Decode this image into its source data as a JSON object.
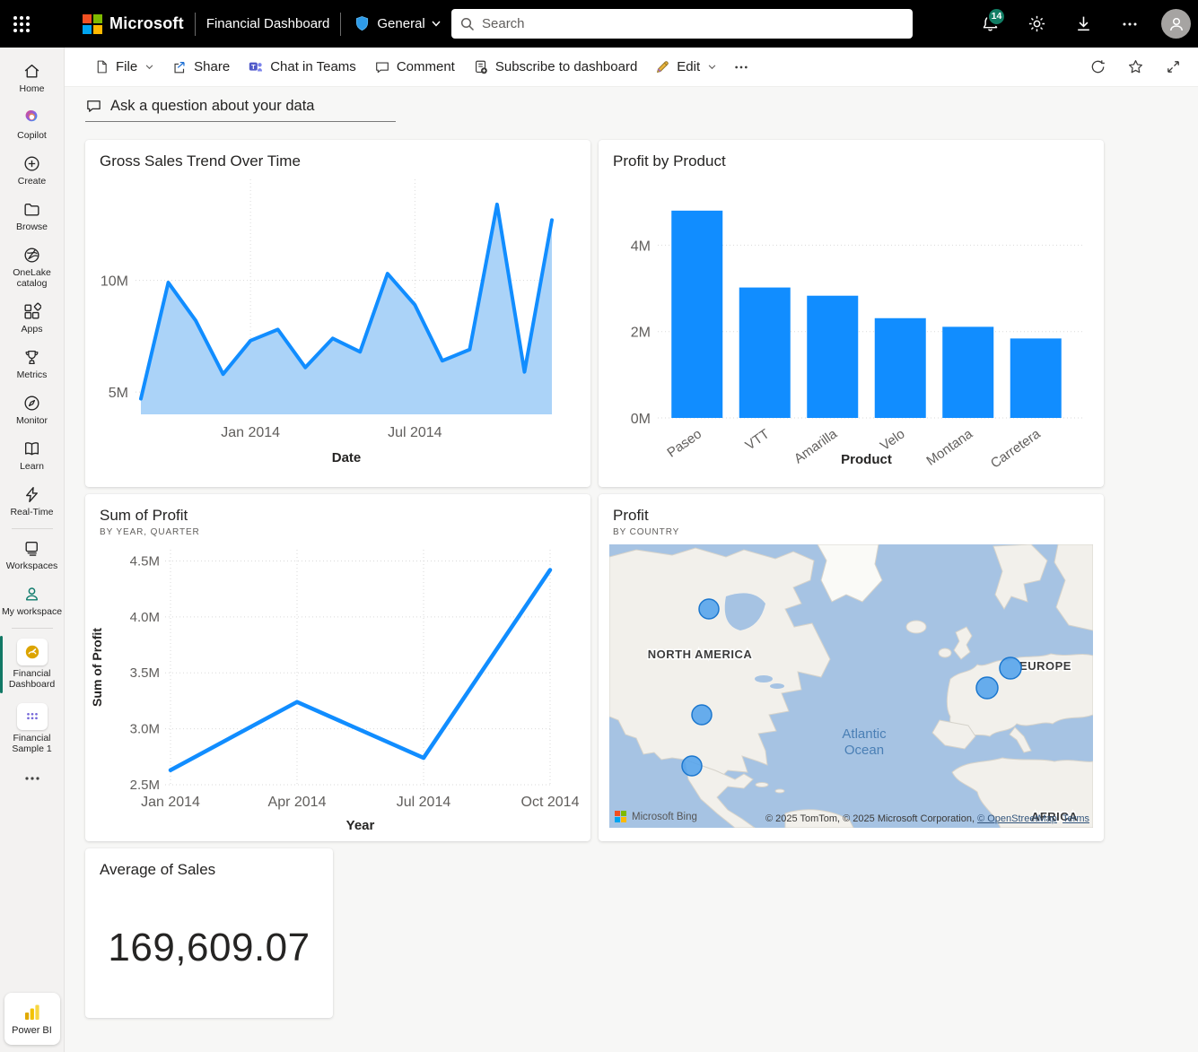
{
  "topbar": {
    "product": "Microsoft",
    "title": "Financial Dashboard",
    "workspace": "General",
    "search_placeholder": "Search",
    "notification_count": "14"
  },
  "toolbar": {
    "file": "File",
    "share": "Share",
    "chat_in_teams": "Chat in Teams",
    "comment": "Comment",
    "subscribe": "Subscribe to dashboard",
    "edit": "Edit"
  },
  "qna": {
    "prompt": "Ask a question about your data"
  },
  "sidebar": {
    "items": [
      {
        "label": "Home"
      },
      {
        "label": "Copilot"
      },
      {
        "label": "Create"
      },
      {
        "label": "Browse"
      },
      {
        "label": "OneLake catalog"
      },
      {
        "label": "Apps"
      },
      {
        "label": "Metrics"
      },
      {
        "label": "Monitor"
      },
      {
        "label": "Learn"
      },
      {
        "label": "Real-Time"
      },
      {
        "label": "Workspaces"
      },
      {
        "label": "My workspace"
      },
      {
        "label": "Financial Dashboard",
        "active": true
      },
      {
        "label": "Financial Sample 1"
      }
    ],
    "footer": "Power BI"
  },
  "chart_data": [
    {
      "type": "area",
      "title": "Gross Sales Trend Over Time",
      "xlabel": "Date",
      "x": [
        "Sep 2013",
        "Oct 2013",
        "Nov 2013",
        "Dec 2013",
        "Jan 2014",
        "Feb 2014",
        "Mar 2014",
        "Apr 2014",
        "May 2014",
        "Jun 2014",
        "Jul 2014",
        "Aug 2014",
        "Sep 2014",
        "Oct 2014",
        "Nov 2014",
        "Dec 2014"
      ],
      "values_millions": [
        4.7,
        9.9,
        8.2,
        5.8,
        7.3,
        7.8,
        6.1,
        7.4,
        6.8,
        10.3,
        8.9,
        6.4,
        6.9,
        13.4,
        5.9,
        12.7
      ],
      "ylim_millions": [
        4,
        14.2
      ],
      "yticks": [
        {
          "label": "5M",
          "value": 5
        },
        {
          "label": "10M",
          "value": 10
        }
      ],
      "xticks": [
        {
          "label": "Jan 2014",
          "index": 4
        },
        {
          "label": "Jul 2014",
          "index": 10
        }
      ],
      "line_color": "#118DFF",
      "fill_color": "#ABD3F8",
      "grid": true
    },
    {
      "type": "bar",
      "title": "Profit by Product",
      "xlabel": "Product",
      "categories": [
        "Paseo",
        "VTT",
        "Amarilla",
        "Velo",
        "Montana",
        "Carretera"
      ],
      "values_millions": [
        4.8,
        3.02,
        2.83,
        2.31,
        2.11,
        1.84
      ],
      "ylim_millions": [
        0,
        5.15
      ],
      "yticks": [
        {
          "label": "0M",
          "value": 0
        },
        {
          "label": "2M",
          "value": 2
        },
        {
          "label": "4M",
          "value": 4
        }
      ],
      "bar_color": "#118DFF",
      "grid": true
    },
    {
      "type": "line",
      "title": "Sum of Profit",
      "subtitle": "BY YEAR, QUARTER",
      "xlabel": "Year",
      "ylabel": "Sum of Profit",
      "categories": [
        "Jan 2014",
        "Apr 2014",
        "Jul 2014",
        "Oct 2014"
      ],
      "values_millions": [
        2.63,
        3.24,
        2.74,
        4.42
      ],
      "ylim_millions": [
        2.5,
        4.6
      ],
      "yticks": [
        {
          "label": "2.5M",
          "value": 2.5
        },
        {
          "label": "3.0M",
          "value": 3.0
        },
        {
          "label": "3.5M",
          "value": 3.5
        },
        {
          "label": "4.0M",
          "value": 4.0
        },
        {
          "label": "4.5M",
          "value": 4.5
        }
      ],
      "line_color": "#118DFF",
      "grid": true
    },
    {
      "type": "map",
      "title": "Profit",
      "subtitle": "BY COUNTRY",
      "region_labels": [
        {
          "text": "NORTH AMERICA",
          "x": 101,
          "y": 127
        },
        {
          "text": "EUROPE",
          "x": 486,
          "y": 140
        },
        {
          "text": "AFRICA",
          "x": 496,
          "y": 308
        }
      ],
      "ocean_label": {
        "lines": [
          "Atlantic",
          "Ocean"
        ],
        "x": 284,
        "y": 216
      },
      "bubbles": [
        {
          "x": 111,
          "y": 72,
          "r": 11
        },
        {
          "x": 103,
          "y": 190,
          "r": 11
        },
        {
          "x": 92,
          "y": 247,
          "r": 11
        },
        {
          "x": 421,
          "y": 160,
          "r": 12
        },
        {
          "x": 447,
          "y": 138,
          "r": 12
        }
      ],
      "bubble_color": "#4DA0EC",
      "bubble_stroke": "#1C77CE",
      "attribution": {
        "bing": "Microsoft Bing",
        "text": "© 2025 TomTom, © 2025 Microsoft Corporation, ",
        "links": [
          "© OpenStreetMap",
          "Terms"
        ]
      }
    },
    {
      "type": "card",
      "title": "Average of Sales",
      "value": "169,609.07"
    }
  ]
}
